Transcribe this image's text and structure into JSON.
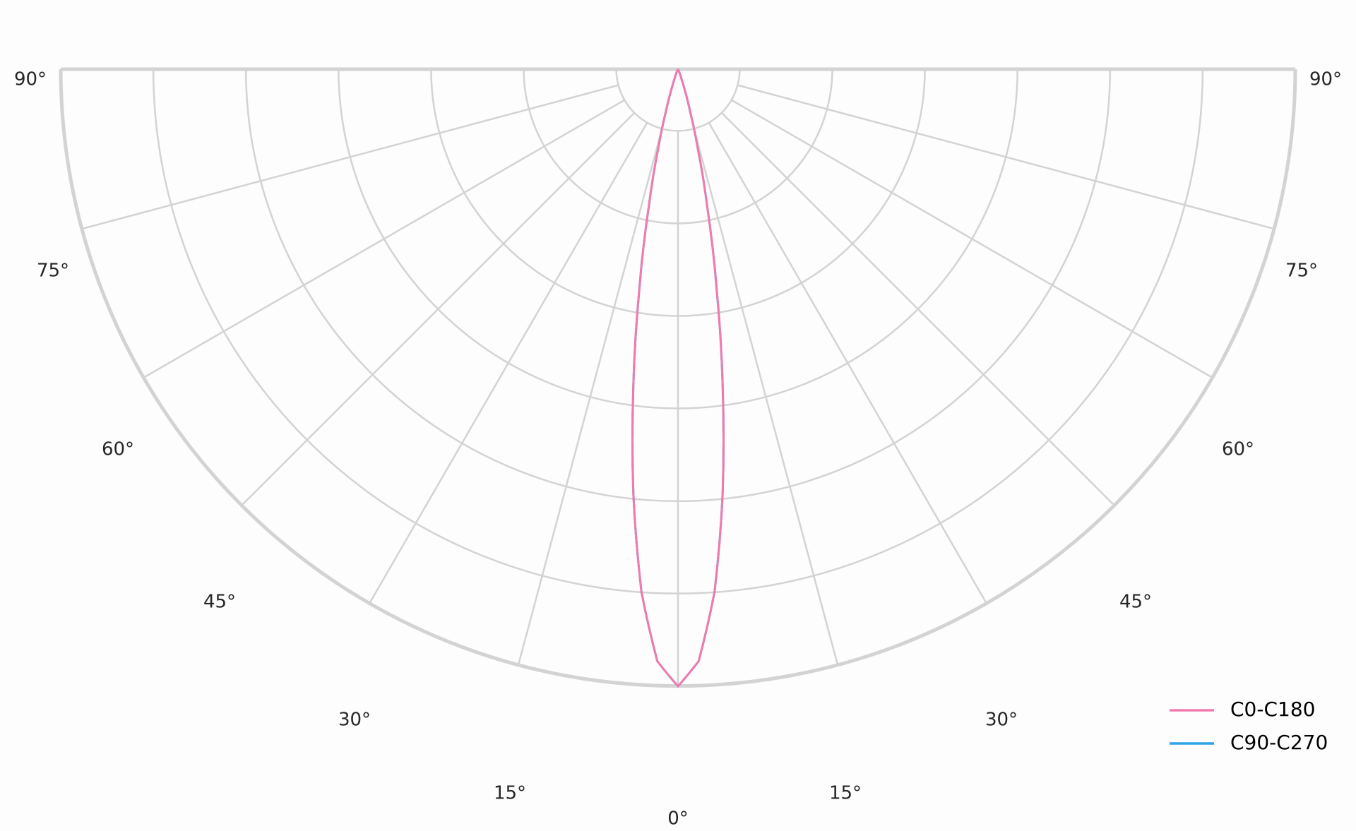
{
  "chart_data": {
    "type": "polar",
    "title": "",
    "angle_unit": "degrees",
    "angle_tick_labels": [
      "90°",
      "75°",
      "60°",
      "45°",
      "30°",
      "15°",
      "0°",
      "15°",
      "30°",
      "45°",
      "60°",
      "75°",
      "90°"
    ],
    "radial_tick_labels": [],
    "radial_range": [
      0,
      1
    ],
    "radial_gridlines": [
      0.1,
      0.25,
      0.4,
      0.55,
      0.7,
      0.85,
      1.0
    ],
    "angular_gridlines_step": 15,
    "grid": true,
    "legend_position": "bottom-right",
    "angles": [
      0,
      2,
      4,
      6,
      8,
      10,
      12,
      14,
      16,
      18,
      20,
      25,
      30,
      45,
      60,
      75,
      90
    ],
    "series": [
      {
        "name": "C90-C270",
        "color": "#2ea3e8",
        "values": [
          1.0,
          0.96,
          0.849,
          0.692,
          0.52,
          0.359,
          0.228,
          0.133,
          0.071,
          0.035,
          0.015,
          0.002,
          0,
          0,
          0,
          0,
          0
        ]
      },
      {
        "name": "C0-C180",
        "color": "#f27aad",
        "values": [
          1.0,
          0.96,
          0.849,
          0.692,
          0.52,
          0.359,
          0.228,
          0.133,
          0.071,
          0.035,
          0.015,
          0.002,
          0,
          0,
          0,
          0,
          0
        ]
      }
    ],
    "grid_color": "#d3d3d3"
  }
}
